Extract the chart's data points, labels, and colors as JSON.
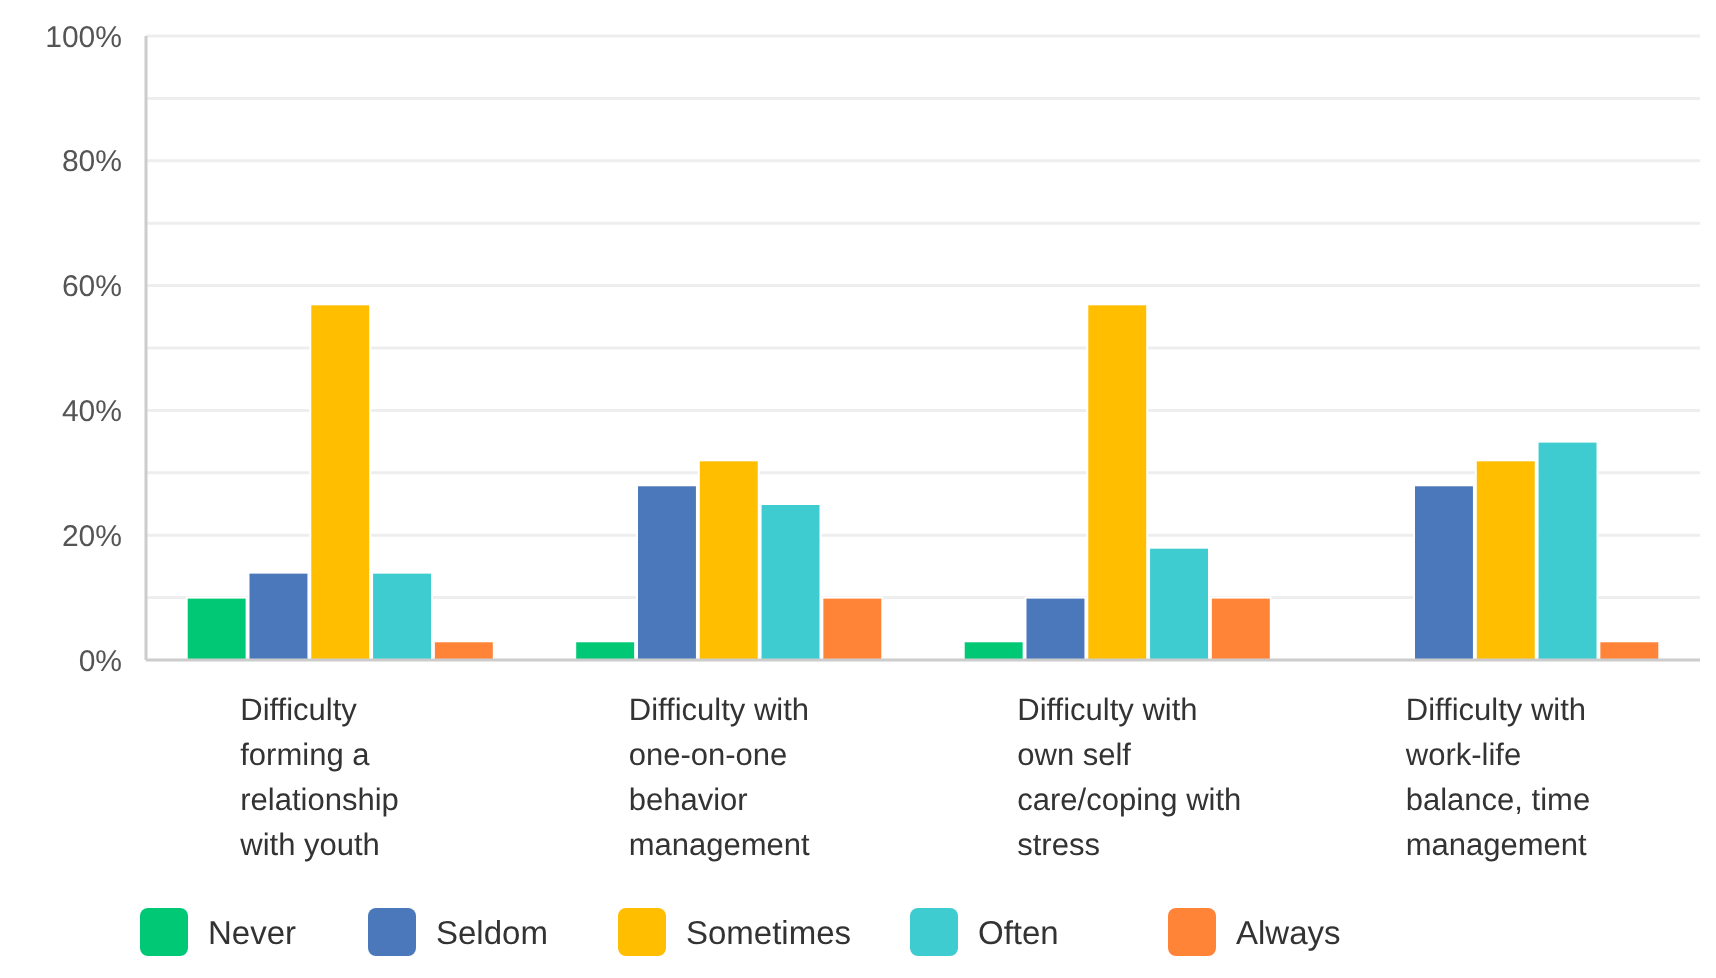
{
  "chart_data": {
    "type": "bar",
    "categories": [
      "Difficulty forming a relationship with youth",
      "Difficulty with one-on-one behavior management",
      "Difficulty with own self care/coping with stress",
      "Difficulty with work-life balance, time management"
    ],
    "series": [
      {
        "name": "Never",
        "color": "#00c875",
        "values": [
          10,
          3,
          3,
          0
        ]
      },
      {
        "name": "Seldom",
        "color": "#4a78bb",
        "values": [
          14,
          28,
          10,
          28
        ]
      },
      {
        "name": "Sometimes",
        "color": "#ffbf00",
        "values": [
          57,
          32,
          57,
          32
        ]
      },
      {
        "name": "Often",
        "color": "#3fccd0",
        "values": [
          14,
          25,
          18,
          35
        ]
      },
      {
        "name": "Always",
        "color": "#ff8438",
        "values": [
          3,
          10,
          10,
          3
        ]
      }
    ],
    "ylim": [
      0,
      100
    ],
    "yticks": [
      {
        "value": 0,
        "label": "0%"
      },
      {
        "value": 10,
        "label": null
      },
      {
        "value": 20,
        "label": "20%"
      },
      {
        "value": 30,
        "label": null
      },
      {
        "value": 40,
        "label": "40%"
      },
      {
        "value": 50,
        "label": null
      },
      {
        "value": 60,
        "label": "60%"
      },
      {
        "value": 70,
        "label": null
      },
      {
        "value": 80,
        "label": "80%"
      },
      {
        "value": 90,
        "label": null
      },
      {
        "value": 100,
        "label": "100%"
      }
    ],
    "grid": "y",
    "legend": "bottom"
  }
}
